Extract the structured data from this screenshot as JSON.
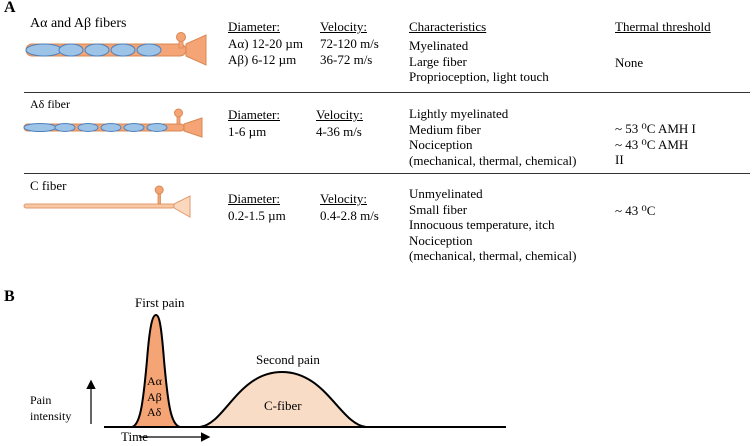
{
  "panel_a": {
    "label": "A",
    "header": {
      "characteristics": "Characteristics",
      "thermal_threshold": "Thermal threshold"
    },
    "rows": [
      {
        "fiber_name": "Aα and Aβ fibers",
        "diameter_label": "Diameter:",
        "diameter_values": [
          "Aα) 12-20 µm",
          "Aβ) 6-12 µm"
        ],
        "velocity_label": "Velocity:",
        "velocity_values": [
          "72-120 m/s",
          "36-72 m/s"
        ],
        "characteristics": [
          "Myelinated",
          "Large fiber",
          "Proprioception, light touch"
        ],
        "thermal_threshold": [
          "None"
        ]
      },
      {
        "fiber_name": "Aδ fiber",
        "diameter_label": "Diameter:",
        "diameter_values": [
          "1-6 µm"
        ],
        "velocity_label": "Velocity:",
        "velocity_values": [
          "4-36 m/s"
        ],
        "characteristics": [
          "Lightly myelinated",
          "Medium fiber",
          "Nociception",
          "(mechanical, thermal, chemical)"
        ],
        "thermal_threshold": [
          "~ 53 ⁰C AMH I",
          "~ 43 ⁰C AMH",
          "II"
        ]
      },
      {
        "fiber_name": "C fiber",
        "diameter_label": "Diameter:",
        "diameter_values": [
          "0.2-1.5 µm"
        ],
        "velocity_label": "Velocity:",
        "velocity_values": [
          "0.4-2.8 m/s"
        ],
        "characteristics": [
          "Unmyelinated",
          "Small fiber",
          "Innocuous temperature, itch",
          "Nociception",
          "(mechanical, thermal, chemical)"
        ],
        "thermal_threshold": [
          "~ 43 ⁰C"
        ]
      }
    ]
  },
  "panel_b": {
    "label": "B",
    "first_pain": "First pain",
    "second_pain": "Second pain",
    "first_peak_labels": [
      "Aα",
      "Aβ",
      "Aδ"
    ],
    "second_peak_label": "C-fiber",
    "y_axis_label": [
      "Pain",
      "intensity"
    ],
    "x_axis_label": "Time"
  },
  "colors": {
    "fiber_orange": "#f4a475",
    "fiber_outline": "#d98855",
    "myelin_blue": "#9dc3e6",
    "myelin_outline": "#4f81bd",
    "c_fiber_fill": "#f8dcc6",
    "divider": "#333333"
  }
}
